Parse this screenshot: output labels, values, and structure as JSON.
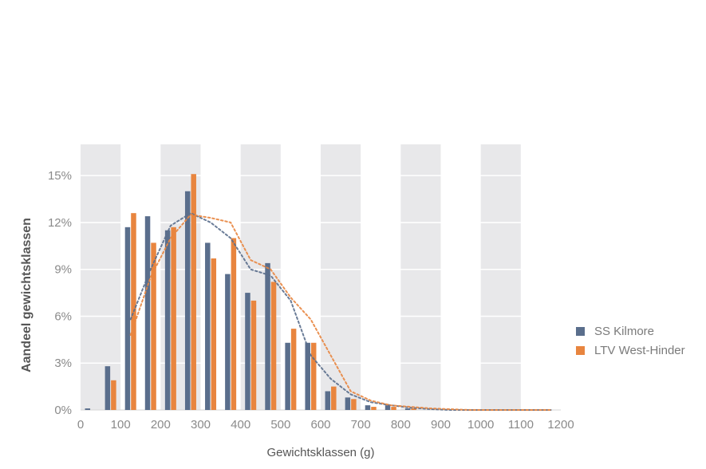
{
  "chart_data": {
    "type": "bar",
    "xlabel": "Gewichtsklassen (g)",
    "ylabel": "Aandeel gewichtsklassen",
    "xlim": [
      0,
      1200
    ],
    "ylim": [
      0,
      17
    ],
    "x_ticks": [
      "0",
      "100",
      "200",
      "300",
      "400",
      "500",
      "600",
      "700",
      "800",
      "900",
      "1000",
      "1100",
      "1200"
    ],
    "y_ticks": [
      "0%",
      "3%",
      "6%",
      "9%",
      "12%",
      "15%"
    ],
    "y_tick_values": [
      0,
      3,
      6,
      9,
      12,
      15
    ],
    "bin_width": 50,
    "categories": [
      25,
      75,
      125,
      175,
      225,
      275,
      325,
      375,
      425,
      475,
      525,
      575,
      625,
      675,
      725,
      775,
      825,
      875,
      925,
      975,
      1025,
      1075,
      1125,
      1175
    ],
    "series": [
      {
        "name": "SS Kilmore",
        "color": "#5a6e8c",
        "values": [
          0.1,
          2.8,
          11.7,
          12.4,
          11.5,
          14.0,
          10.7,
          8.7,
          7.5,
          9.4,
          4.3,
          4.3,
          1.2,
          0.8,
          0.3,
          0.3,
          0.1,
          0,
          0,
          0,
          0,
          0,
          0,
          0
        ],
        "trend": [
          0,
          1.5,
          5.8,
          9.0,
          11.8,
          12.6,
          12.0,
          11.0,
          9.0,
          8.6,
          7.0,
          3.5,
          2.0,
          1.0,
          0.5,
          0.3,
          0.15,
          0.05,
          0,
          0,
          0,
          0,
          0,
          0
        ]
      },
      {
        "name": "LTV West-Hinder",
        "color": "#e8853f",
        "values": [
          0,
          1.9,
          12.6,
          10.7,
          11.7,
          15.1,
          9.7,
          11.0,
          7.0,
          8.2,
          5.2,
          4.3,
          1.5,
          0.7,
          0.2,
          0.2,
          0.1,
          0,
          0,
          0,
          0,
          0,
          0,
          0
        ],
        "trend": [
          0,
          1.0,
          4.8,
          8.5,
          11.0,
          12.5,
          12.3,
          12.0,
          9.6,
          9.0,
          7.2,
          5.8,
          3.5,
          1.2,
          0.6,
          0.3,
          0.2,
          0.1,
          0.05,
          0,
          0,
          0,
          0,
          0
        ]
      }
    ],
    "legend_position": "right",
    "shaded_bands": [
      [
        0,
        100
      ],
      [
        200,
        300
      ],
      [
        400,
        500
      ],
      [
        600,
        700
      ],
      [
        800,
        900
      ],
      [
        1000,
        1100
      ]
    ],
    "grid": true
  }
}
